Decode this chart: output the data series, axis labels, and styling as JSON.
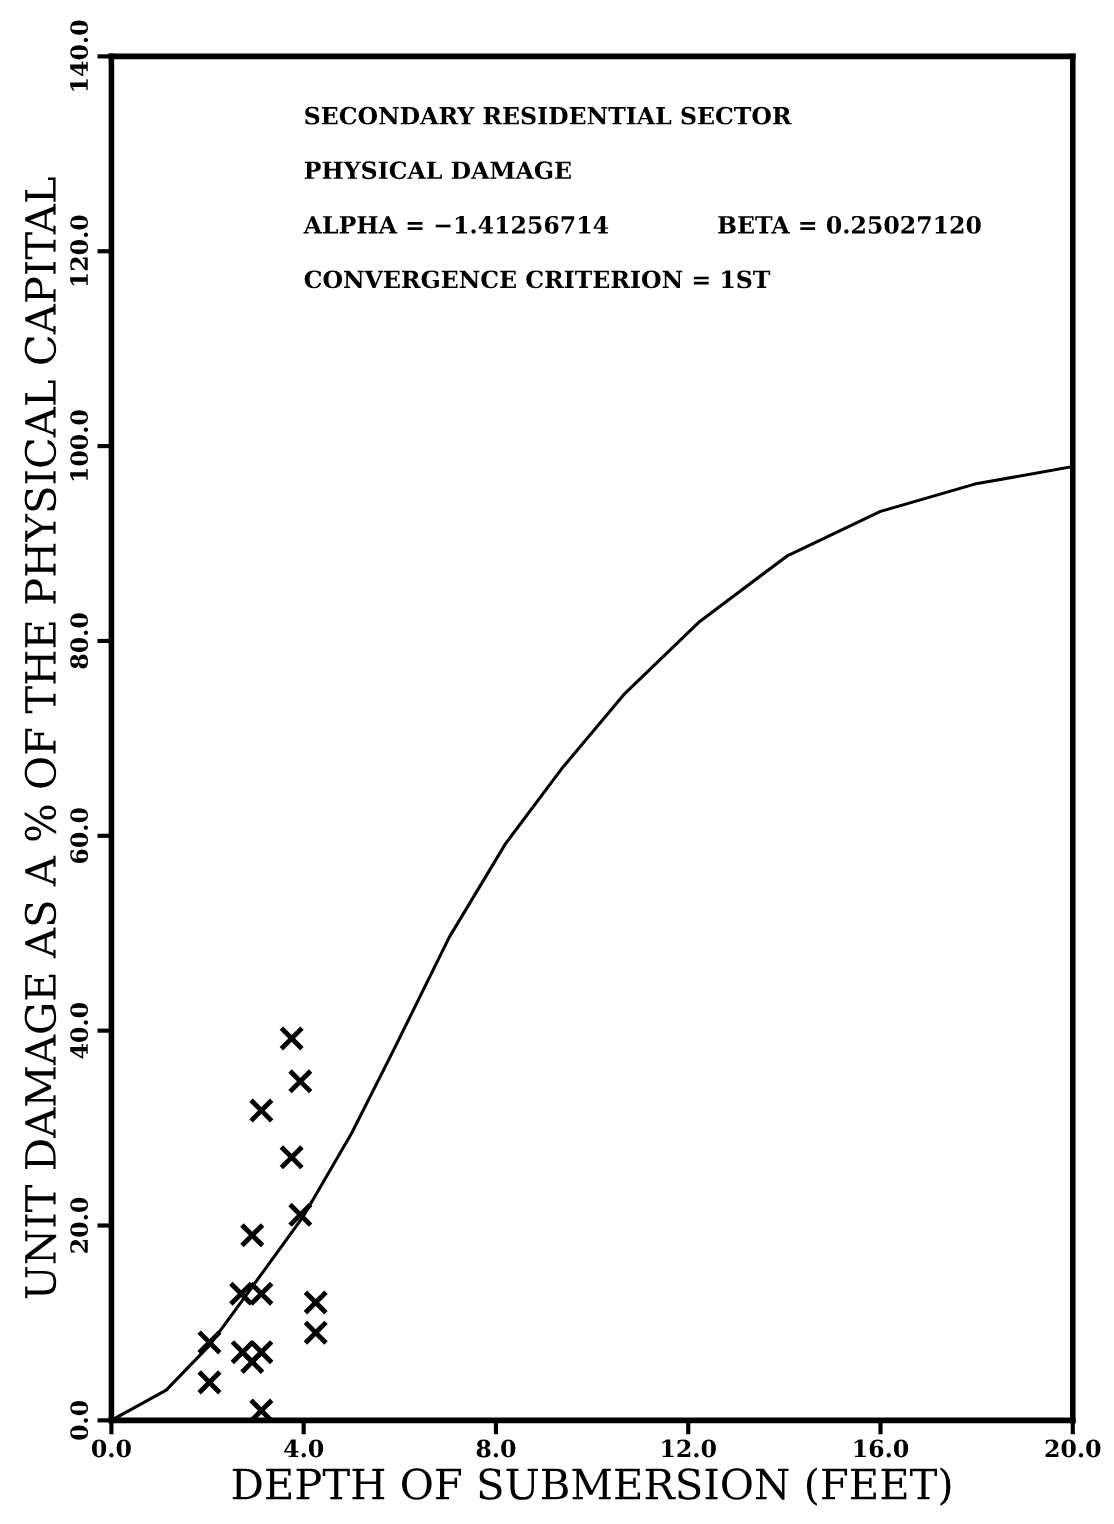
{
  "chart_data": {
    "type": "scatter",
    "xlabel": "DEPTH OF SUBMERSION (FEET)",
    "ylabel": "UNIT DAMAGE AS A % OF THE PHYSICAL CAPITAL",
    "annotations": [
      "SECONDARY RESIDENTIAL SECTOR",
      "PHYSICAL DAMAGE",
      "ALPHA = −1.41256714",
      "BETA = 0.25027120",
      "CONVERGENCE CRITERION = 1ST"
    ],
    "xlim": [
      0,
      20
    ],
    "ylim": [
      0,
      140
    ],
    "xticks": [
      {
        "value": 0,
        "label": "0.0"
      },
      {
        "value": 4,
        "label": "4.0"
      },
      {
        "value": 8,
        "label": "8.0"
      },
      {
        "value": 12,
        "label": "12.0"
      },
      {
        "value": 16,
        "label": "16.0"
      },
      {
        "value": 20,
        "label": "20.0"
      }
    ],
    "yticks": [
      {
        "value": 0,
        "label": "0.0"
      },
      {
        "value": 20,
        "label": "20.0"
      },
      {
        "value": 40,
        "label": "40.0"
      },
      {
        "value": 60,
        "label": "60.0"
      },
      {
        "value": 80,
        "label": "80.0"
      },
      {
        "value": 100,
        "label": "100.0"
      },
      {
        "value": 120,
        "label": "120.0"
      },
      {
        "value": 140,
        "label": "140.0"
      }
    ],
    "grid": false,
    "legend": false,
    "series": [
      {
        "color": "#000000",
        "marker": "cross",
        "x": [
          2.04,
          2.04,
          2.7,
          2.73,
          2.93,
          2.93,
          3.12,
          3.12,
          3.12,
          3.12,
          3.75,
          3.75,
          3.93,
          3.93,
          4.25,
          4.25
        ],
        "values": [
          8.0,
          3.9,
          13.0,
          7.0,
          19.0,
          6.0,
          13.0,
          7.0,
          31.8,
          1.0,
          39.2,
          27.0,
          34.8,
          21.1,
          12.1,
          9.0
        ]
      },
      {
        "type": "line",
        "color": "#000000",
        "line_style": "solid",
        "x": [
          0,
          1.14,
          2.04,
          2.93,
          4.0,
          5.0,
          5.87,
          7.03,
          8.2,
          9.37,
          10.68,
          12.24,
          14.05,
          16.0,
          17.96,
          20.0
        ],
        "values": [
          0,
          3.1,
          7.7,
          13.7,
          21.0,
          29.5,
          38.0,
          49.6,
          59.2,
          66.9,
          74.6,
          82.0,
          88.7,
          93.3,
          96.1,
          97.9
        ]
      }
    ]
  }
}
